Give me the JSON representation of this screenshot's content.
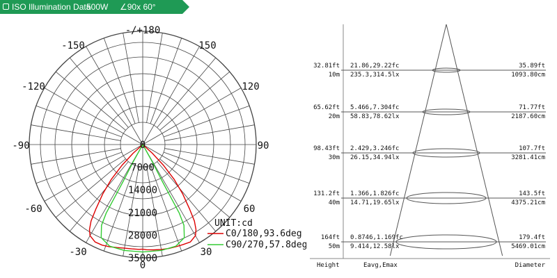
{
  "header": {
    "title": "ISO Illumination  Data",
    "power": "500W",
    "angle": "∠90x 60°",
    "background_color": "#1f9a55"
  },
  "chart_data": [
    {
      "type": "polar",
      "angle_labels": [
        "-/+180",
        "-150",
        "150",
        "-120",
        "120",
        "-90",
        "90",
        "-60",
        "60",
        "-30",
        "30",
        "0"
      ],
      "radial_ticks": [
        0,
        7000,
        14000,
        21000,
        28000,
        35000
      ],
      "radial_labels": [
        "0",
        "7000",
        "14000",
        "21000",
        "28000",
        "35000"
      ],
      "rmax": 35000,
      "unit_label": "UNIT:cd",
      "series": [
        {
          "name": "C0/180,93.6deg",
          "color": "#dd0000",
          "points": [
            [
              -50,
              0
            ],
            [
              -48,
              4000
            ],
            [
              -45,
              9000
            ],
            [
              -42,
              14500
            ],
            [
              -39,
              19500
            ],
            [
              -36,
              24500
            ],
            [
              -34,
              28500
            ],
            [
              -32,
              31000
            ],
            [
              -30,
              32500
            ],
            [
              -26,
              33500
            ],
            [
              -22,
              33500
            ],
            [
              -18,
              33200
            ],
            [
              -14,
              32800
            ],
            [
              -10,
              32500
            ],
            [
              -6,
              32400
            ],
            [
              -2,
              32400
            ],
            [
              0,
              32300
            ],
            [
              2,
              32500
            ],
            [
              6,
              32700
            ],
            [
              10,
              32900
            ],
            [
              14,
              33100
            ],
            [
              18,
              33200
            ],
            [
              22,
              33300
            ],
            [
              26,
              33500
            ],
            [
              30,
              32500
            ],
            [
              32,
              31000
            ],
            [
              34,
              28500
            ],
            [
              36,
              24500
            ],
            [
              39,
              19500
            ],
            [
              42,
              14500
            ],
            [
              45,
              9000
            ],
            [
              48,
              4000
            ],
            [
              50,
              0
            ]
          ]
        },
        {
          "name": "C90/270,57.8deg",
          "color": "#33cc33",
          "points": [
            [
              -30,
              0
            ],
            [
              -29,
              6000
            ],
            [
              -28,
              13000
            ],
            [
              -28,
              19000
            ],
            [
              -28,
              24000
            ],
            [
              -27,
              28000
            ],
            [
              -24,
              31500
            ],
            [
              -18,
              33000
            ],
            [
              -10,
              33200
            ],
            [
              0,
              33200
            ],
            [
              10,
              33200
            ],
            [
              18,
              33000
            ],
            [
              24,
              31500
            ],
            [
              27,
              28000
            ],
            [
              28,
              24000
            ],
            [
              28,
              19000
            ],
            [
              28,
              13000
            ],
            [
              29,
              6000
            ],
            [
              30,
              0
            ]
          ]
        }
      ]
    },
    {
      "type": "table",
      "columns": [
        "Height",
        "Eavg,Emax",
        "Diameter"
      ],
      "rows": [
        {
          "h_ft": "32.81ft",
          "h_m": "10m",
          "e_fc": "21.86,29.22fc",
          "e_lx": "235.3,314.5lx",
          "d_ft": "35.89ft",
          "d_cm": "1093.80cm"
        },
        {
          "h_ft": "65.62ft",
          "h_m": "20m",
          "e_fc": "5.466,7.304fc",
          "e_lx": "58.83,78.62lx",
          "d_ft": "71.77ft",
          "d_cm": "2187.60cm"
        },
        {
          "h_ft": "98.43ft",
          "h_m": "30m",
          "e_fc": "2.429,3.246fc",
          "e_lx": "26.15,34.94lx",
          "d_ft": "107.7ft",
          "d_cm": "3281.41cm"
        },
        {
          "h_ft": "131.2ft",
          "h_m": "40m",
          "e_fc": "1.366,1.826fc",
          "e_lx": "14.71,19.65lx",
          "d_ft": "143.5ft",
          "d_cm": "4375.21cm"
        },
        {
          "h_ft": "164ft",
          "h_m": "50m",
          "e_fc": "0.8746,1.169fc",
          "e_lx": "9.414,12.58lx",
          "d_ft": "179.4ft",
          "d_cm": "5469.01cm"
        }
      ]
    }
  ]
}
